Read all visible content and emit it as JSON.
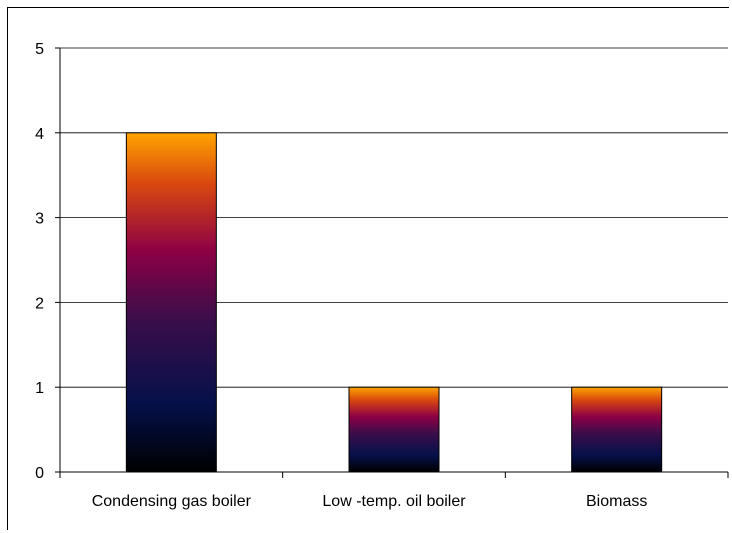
{
  "chart_data": {
    "type": "bar",
    "categories": [
      "Condensing gas boiler",
      "Low -temp. oil boiler",
      "Biomass"
    ],
    "values": [
      4,
      1,
      1
    ],
    "title": "",
    "xlabel": "",
    "ylabel": "",
    "ylim": [
      0,
      5
    ],
    "yticks": [
      "0",
      "1",
      "2",
      "3",
      "4",
      "5"
    ],
    "grid": true,
    "legend": "none",
    "bar_gradient": [
      "#000000",
      "#05104a",
      "#3a0e4a",
      "#8c0045",
      "#d9480f",
      "#ffa400"
    ]
  }
}
